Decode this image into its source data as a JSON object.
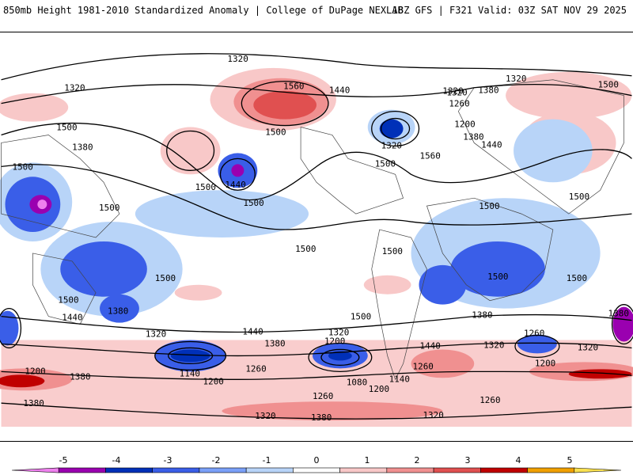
{
  "header": {
    "title": "850mb Height 1981-2010 Standardized Anomaly | College of DuPage NEXLAB",
    "run_info": "18Z GFS | F321 Valid: 03Z SAT NOV 29 2025"
  },
  "map": {
    "variable": "850mb geopotential height (contours) with standardized anomaly (shading)",
    "contour_labels": [
      "1320",
      "1320",
      "1320",
      "1320",
      "1560",
      "1440",
      "1320",
      "1260",
      "1380",
      "1500",
      "1200",
      "1500",
      "1500",
      "1380",
      "1440",
      "1380",
      "1500",
      "1320",
      "1500",
      "1440",
      "1500",
      "1560",
      "1500",
      "1500",
      "1500",
      "1500",
      "1500",
      "1500",
      "1500",
      "1500",
      "1500",
      "1500",
      "1440",
      "1380",
      "1380",
      "1500",
      "1440",
      "1320",
      "1320",
      "1260",
      "1200",
      "1380",
      "1320",
      "1440",
      "1380",
      "1200",
      "1320",
      "1260",
      "1140",
      "1200",
      "1260",
      "1080",
      "1140",
      "1200",
      "1260",
      "1200",
      "1380",
      "1260",
      "1320",
      "1380",
      "1320",
      "1380"
    ]
  },
  "colorbar": {
    "ticks": [
      "-5",
      "-4",
      "-3",
      "-2",
      "-1",
      "0",
      "1",
      "2",
      "3",
      "4",
      "5"
    ],
    "colors": [
      "#ee80ee",
      "#9a00b0",
      "#0030b8",
      "#3a5ee8",
      "#7aa0f8",
      "#b8d4f8",
      "#ffffff",
      "#f8c8c8",
      "#f09090",
      "#e05050",
      "#c00000",
      "#f0a000",
      "#f8e050"
    ]
  }
}
